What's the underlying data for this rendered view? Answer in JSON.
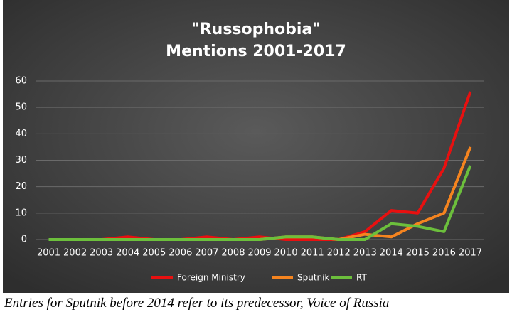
{
  "chart_data": {
    "type": "line",
    "title": [
      "\"Russophobia\"",
      "Mentions 2001-2017"
    ],
    "categories": [
      "2001",
      "2002",
      "2003",
      "2004",
      "2005",
      "2006",
      "2007",
      "2008",
      "2009",
      "2010",
      "2011",
      "2012",
      "2013",
      "2014",
      "2015",
      "2016",
      "2017"
    ],
    "series": [
      {
        "name": "Foreign Ministry",
        "color": "#e81010",
        "values": [
          0,
          0,
          0,
          1,
          0,
          0,
          1,
          0,
          1,
          0,
          0,
          0,
          3,
          11,
          10,
          27,
          56
        ]
      },
      {
        "name": "Sputnik",
        "color": "#f5841f",
        "values": [
          0,
          0,
          0,
          0,
          0,
          0,
          0,
          0,
          0,
          1,
          1,
          0,
          2,
          1,
          6,
          10,
          35
        ]
      },
      {
        "name": "RT",
        "color": "#6cbf3c",
        "values": [
          0,
          0,
          0,
          0,
          0,
          0,
          0,
          0,
          0,
          1,
          1,
          0,
          0,
          6,
          5,
          3,
          28
        ]
      }
    ],
    "ylim": [
      0,
      60
    ],
    "yticks": [
      0,
      10,
      20,
      30,
      40,
      50,
      60
    ],
    "grid": true,
    "legend": "bottom"
  },
  "caption": "Entries for Sputnik before 2014 refer to its predecessor, Voice of Russia"
}
